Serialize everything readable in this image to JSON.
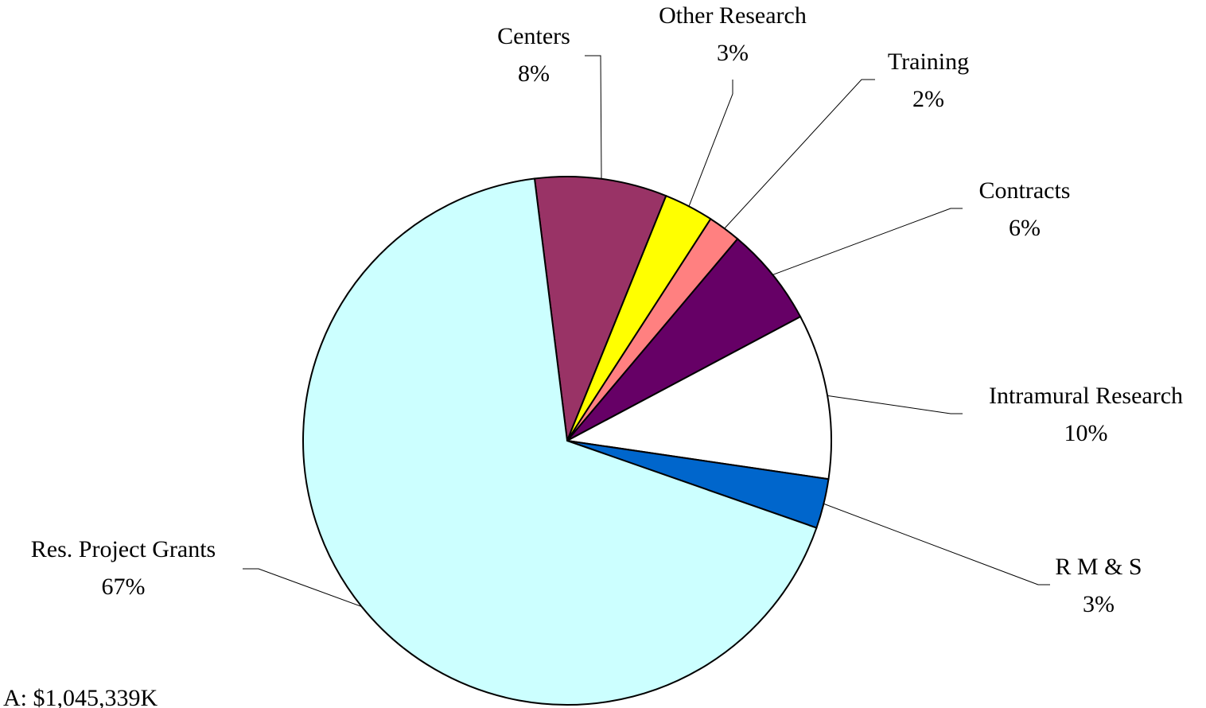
{
  "chart_data": {
    "type": "pie",
    "categories": [
      "Centers",
      "Other Research",
      "Training",
      "Contracts",
      "Intramural Research",
      "R M & S",
      "Res. Project Grants"
    ],
    "values": [
      8,
      3,
      2,
      6,
      10,
      3,
      67
    ],
    "value_labels": [
      "8%",
      "3%",
      "2%",
      "6%",
      "10%",
      "3%",
      "67%"
    ],
    "colors": [
      "#993366",
      "#ffff00",
      "#ff8080",
      "#660066",
      "#ffffff",
      "#0066cc",
      "#ccffff"
    ],
    "note": "A: $1,045,339K"
  }
}
